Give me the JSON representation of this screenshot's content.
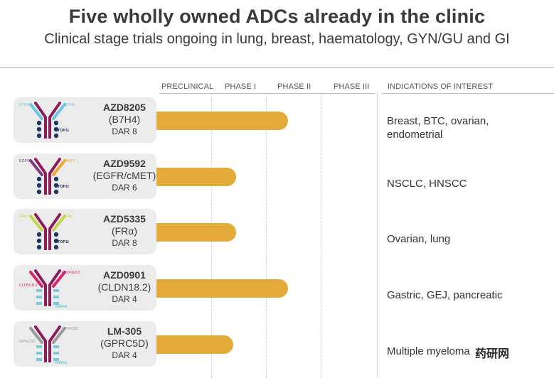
{
  "title": "Five wholly owned ADCs already in the clinic",
  "subtitle": "Clinical stage trials ongoing in lung, breast, haematology, GYN/GU and GI",
  "watermark": "药研网",
  "colors": {
    "bar": "#e3ac3a",
    "card": "#ececec",
    "antibody": "#8b1d5a",
    "payload": "#1f3864"
  },
  "chart_data": {
    "type": "bar",
    "orientation": "horizontal",
    "stage_headers": [
      "PRECLINICAL",
      "PHASE I",
      "PHASE II",
      "PHASE III"
    ],
    "indications_header": "INDICATIONS OF INTEREST",
    "categories": [
      "AZD8205",
      "AZD9592",
      "AZD5335",
      "AZD0901",
      "LM-305"
    ],
    "stage_reached": [
      "Phase II",
      "Phase I",
      "Phase I",
      "Phase II",
      "Phase I"
    ],
    "values": [
      2.4,
      1.45,
      1.45,
      2.4,
      1.4
    ],
    "value_scale": "0 = start of Preclinical column, 1 = start of Phase I, 2 = start of Phase II, 3 = start of Phase III, 4 = end of Phase III",
    "xlim": [
      0,
      4
    ],
    "items": [
      {
        "name": "AZD8205",
        "target": "(B7H4)",
        "dar": "DAR 8",
        "indication": "Breast, BTC, ovarian, endometrial",
        "antigen_left": "B7H4",
        "antigen_right": "B7H4",
        "payload": "TOP1i",
        "arm_left_color": "#6ec6e6",
        "arm_right_color": "#6ec6e6"
      },
      {
        "name": "AZD9592",
        "target": "(EGFR/cMET)",
        "dar": "DAR 6",
        "indication": "NSCLC, HNSCC",
        "antigen_left": "EGFR",
        "antigen_right": "cMET",
        "payload": "TOP1i",
        "arm_left_color": "#7a3b82",
        "arm_right_color": "#f0a830"
      },
      {
        "name": "AZD5335",
        "target": "(FRα)",
        "dar": "DAR 8",
        "indication": "Ovarian, lung",
        "antigen_left": "FRα",
        "antigen_right": "FRα",
        "payload": "TOP1i",
        "arm_left_color": "#c5d64a",
        "arm_right_color": "#c5d64a"
      },
      {
        "name": "AZD0901",
        "target": "(CLDN18.2)",
        "dar": "DAR 4",
        "indication": "Gastric, GEJ, pancreatic",
        "antigen_left": "CLDN18.2",
        "antigen_right": "CLDN18.2",
        "payload": "MMAE",
        "arm_left_color": "#d6246e",
        "arm_right_color": "#d6246e"
      },
      {
        "name": "LM-305",
        "target": "(GPRC5D)",
        "dar": "DAR 4",
        "indication": "Multiple myeloma",
        "antigen_left": "GPRC5D",
        "antigen_right": "GPRC5D",
        "payload": "MMAE",
        "arm_left_color": "#9a9a9a",
        "arm_right_color": "#9a9a9a"
      }
    ]
  }
}
